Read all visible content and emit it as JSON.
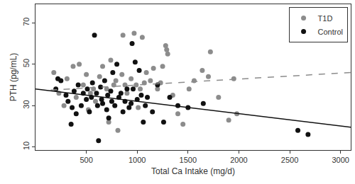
{
  "chart_data": {
    "type": "scatter",
    "x_label": "Total Ca Intake (mg/d)",
    "y_label": "PTH (pg/mL)",
    "xlim": [
      0,
      3100
    ],
    "xticks": [
      500,
      1000,
      1500,
      2000,
      2500,
      3000
    ],
    "ylim": [
      8.5,
      79
    ],
    "yticks": [
      10,
      30,
      50,
      70
    ],
    "grid": false,
    "legend": "top-right",
    "series": [
      {
        "name": "T1D",
        "color": "#8c8c8c",
        "marker": "circle",
        "line_style": "dashed",
        "x": [
          180,
          230,
          280,
          310,
          370,
          400,
          430,
          470,
          500,
          520,
          540,
          570,
          590,
          630,
          660,
          700,
          720,
          740,
          770,
          790,
          810,
          850,
          860,
          880,
          900,
          940,
          970,
          990,
          1010,
          1030,
          1050,
          1070,
          1090,
          1130,
          1160,
          1200,
          1230,
          1250,
          1280,
          1290,
          1300,
          1350,
          1400,
          1450,
          1510,
          1560,
          1640,
          1700,
          1720,
          1800,
          1900,
          1950,
          1980
        ],
        "values": [
          46,
          36,
          30,
          43,
          49,
          34,
          50,
          40,
          45,
          28,
          36,
          38,
          32,
          44,
          49,
          38,
          22,
          52,
          40,
          42,
          18,
          45,
          64,
          40,
          36,
          43,
          65,
          40,
          29,
          38,
          63,
          41,
          46,
          42,
          48,
          38,
          41,
          49,
          59,
          57,
          55,
          35,
          26,
          21,
          38,
          42,
          47,
          44,
          56,
          34,
          23,
          43,
          26
        ],
        "trend_x": [
          150,
          3100
        ],
        "trend_values": [
          37.5,
          46
        ]
      },
      {
        "name": "Control",
        "color": "#111111",
        "marker": "circle",
        "line_style": "solid",
        "x": [
          200,
          220,
          250,
          300,
          320,
          350,
          360,
          380,
          400,
          420,
          450,
          470,
          500,
          510,
          530,
          550,
          560,
          580,
          600,
          610,
          620,
          640,
          650,
          660,
          680,
          700,
          710,
          720,
          740,
          750,
          760,
          780,
          800,
          820,
          840,
          860,
          880,
          900,
          920,
          940,
          950,
          960,
          980,
          1000,
          1020,
          1040,
          1060,
          1080,
          1100,
          1150,
          1200,
          1260,
          1320,
          1400,
          1500,
          1650,
          2580,
          2680
        ],
        "values": [
          38,
          43,
          42,
          35,
          32,
          21,
          29,
          37,
          26,
          40,
          30,
          36,
          33,
          38,
          27,
          34,
          41,
          64,
          36,
          30,
          13,
          39,
          33,
          31,
          42,
          28,
          35,
          24,
          37,
          32,
          46,
          30,
          50,
          34,
          36,
          27,
          32,
          38,
          29,
          31,
          60,
          38,
          51,
          33,
          47,
          35,
          22,
          30,
          34,
          27,
          40,
          22,
          34,
          30,
          29,
          31,
          18,
          16
        ],
        "trend_x": [
          0,
          3100
        ],
        "trend_values": [
          38,
          19.5
        ]
      }
    ]
  }
}
